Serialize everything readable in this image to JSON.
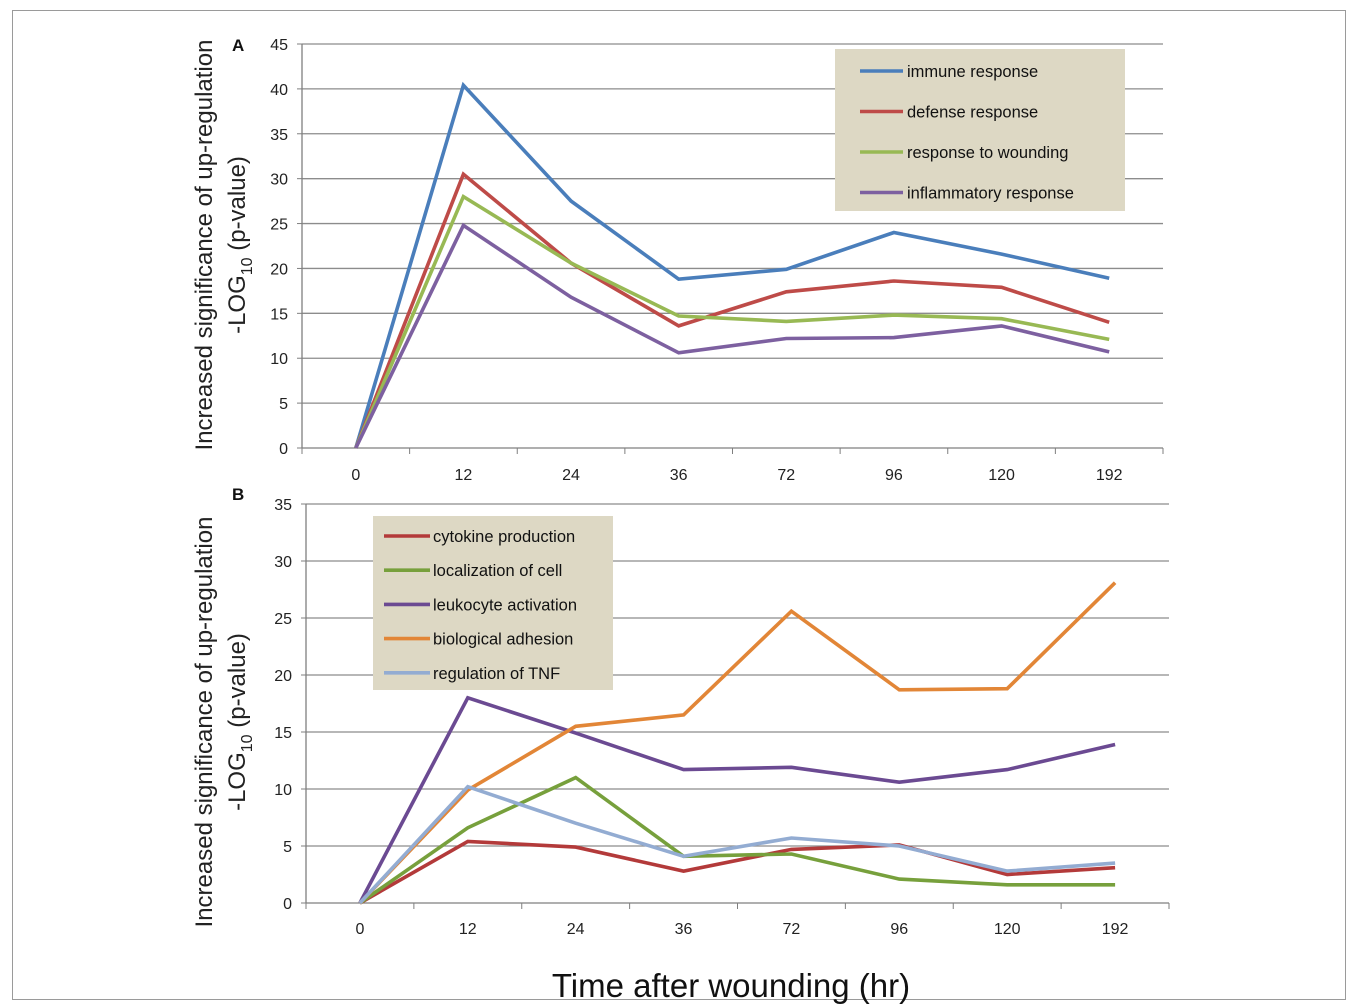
{
  "chart_data": [
    {
      "type": "line",
      "panel_label": "A",
      "ylabel_line1": "Increased significance of up-regulation",
      "ylabel_line2_prefix": "-LOG",
      "ylabel_line2_sub": "10",
      "ylabel_line2_suffix": " (p-value)",
      "categories": [
        "0",
        "12",
        "24",
        "36",
        "72",
        "96",
        "120",
        "192"
      ],
      "ylim": [
        0,
        45
      ],
      "yticks": [
        0,
        5,
        10,
        15,
        20,
        25,
        30,
        35,
        40,
        45
      ],
      "grid": true,
      "legend_position": "top-right",
      "series": [
        {
          "name": "immune response",
          "color": "#4a7ebb",
          "values": [
            0,
            40.4,
            27.5,
            18.8,
            19.9,
            24.0,
            21.6,
            18.9
          ]
        },
        {
          "name": "defense response",
          "color": "#be4b48",
          "values": [
            0,
            30.5,
            20.6,
            13.6,
            17.4,
            18.6,
            17.9,
            14.0
          ]
        },
        {
          "name": "response to wounding",
          "color": "#98b954",
          "values": [
            0,
            28.0,
            20.6,
            14.7,
            14.1,
            14.8,
            14.4,
            12.1
          ]
        },
        {
          "name": "inflammatory response",
          "color": "#7d60a0",
          "values": [
            0,
            24.8,
            16.8,
            10.6,
            12.2,
            12.3,
            13.6,
            10.7
          ]
        }
      ]
    },
    {
      "type": "line",
      "panel_label": "B",
      "ylabel_line1": "Increased significance of up-regulation",
      "ylabel_line2_prefix": "-LOG",
      "ylabel_line2_sub": "10",
      "ylabel_line2_suffix": " (p-value)",
      "categories": [
        "0",
        "12",
        "24",
        "36",
        "72",
        "96",
        "120",
        "192"
      ],
      "ylim": [
        0,
        35
      ],
      "yticks": [
        0,
        5,
        10,
        15,
        20,
        25,
        30,
        35
      ],
      "grid": true,
      "legend_position": "top-left",
      "series": [
        {
          "name": "cytokine production",
          "color": "#b33a3a",
          "values": [
            0,
            5.4,
            4.9,
            2.8,
            4.7,
            5.1,
            2.5,
            3.1
          ]
        },
        {
          "name": "localization of cell",
          "color": "#77a03c",
          "values": [
            0,
            6.6,
            11.0,
            4.1,
            4.3,
            2.1,
            1.6,
            1.6
          ]
        },
        {
          "name": "leukocyte activation",
          "color": "#6b4a92",
          "values": [
            0,
            18.0,
            14.9,
            11.7,
            11.9,
            10.6,
            11.7,
            13.9
          ]
        },
        {
          "name": "biological adhesion",
          "color": "#e28637",
          "values": [
            0,
            9.9,
            15.5,
            16.5,
            25.6,
            18.7,
            18.8,
            28.1
          ]
        },
        {
          "name": "regulation of TNF",
          "color": "#93acd2",
          "values": [
            0,
            10.2,
            7.0,
            4.1,
            5.7,
            5.0,
            2.8,
            3.5
          ]
        }
      ]
    }
  ],
  "xlabel": "Time after wounding (hr)",
  "colors": {
    "grid": "#8c8c8c",
    "axis": "#7f7f7f",
    "legend_bg": "#ddd8c4"
  }
}
